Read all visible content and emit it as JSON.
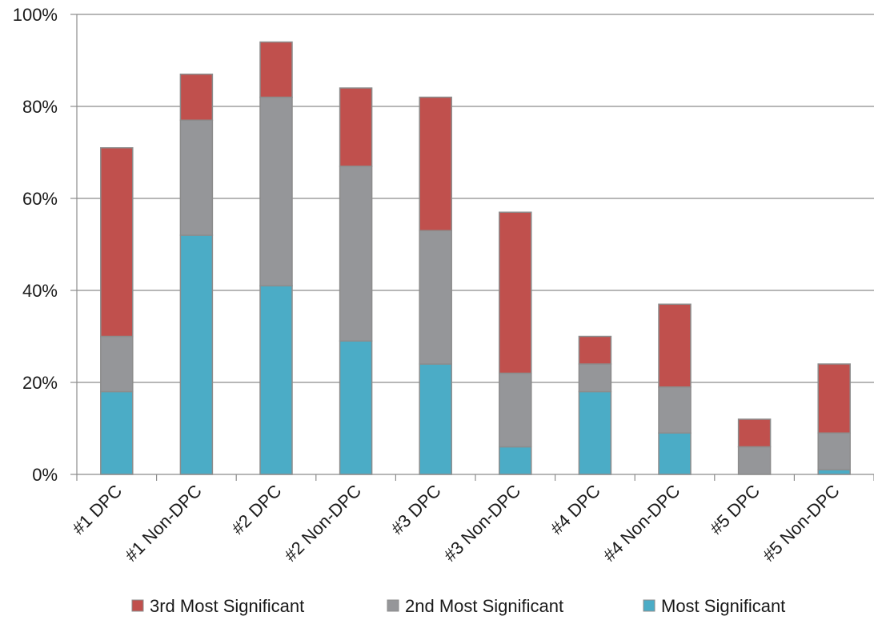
{
  "chart_data": {
    "type": "bar",
    "stacked": true,
    "title": "",
    "xlabel": "",
    "ylabel": "",
    "categories": [
      "#1 DPC",
      "#1 Non-DPC",
      "#2 DPC",
      "#2 Non-DPC",
      "#3 DPC",
      "#3 Non-DPC",
      "#4 DPC",
      "#4 Non-DPC",
      "#5 DPC",
      "#5 Non-DPC"
    ],
    "series": [
      {
        "name": "Most Significant",
        "color": "#4BACC6",
        "values": [
          18,
          52,
          41,
          29,
          24,
          6,
          18,
          9,
          0,
          1
        ]
      },
      {
        "name": "2nd Most Significant",
        "color": "#959699",
        "values": [
          12,
          25,
          41,
          38,
          29,
          16,
          6,
          10,
          6,
          8
        ]
      },
      {
        "name": "3rd Most Significant",
        "color": "#C0504D",
        "values": [
          41,
          10,
          12,
          17,
          29,
          35,
          6,
          18,
          6,
          15
        ]
      }
    ],
    "ylim": [
      0,
      100
    ],
    "yticks": [
      "0%",
      "20%",
      "40%",
      "60%",
      "80%",
      "100%"
    ],
    "ytick_values": [
      0,
      20,
      40,
      60,
      80,
      100
    ],
    "grid": true,
    "legend": {
      "position": "bottom",
      "order": [
        "3rd Most Significant",
        "2nd Most Significant",
        "Most Significant"
      ]
    }
  }
}
